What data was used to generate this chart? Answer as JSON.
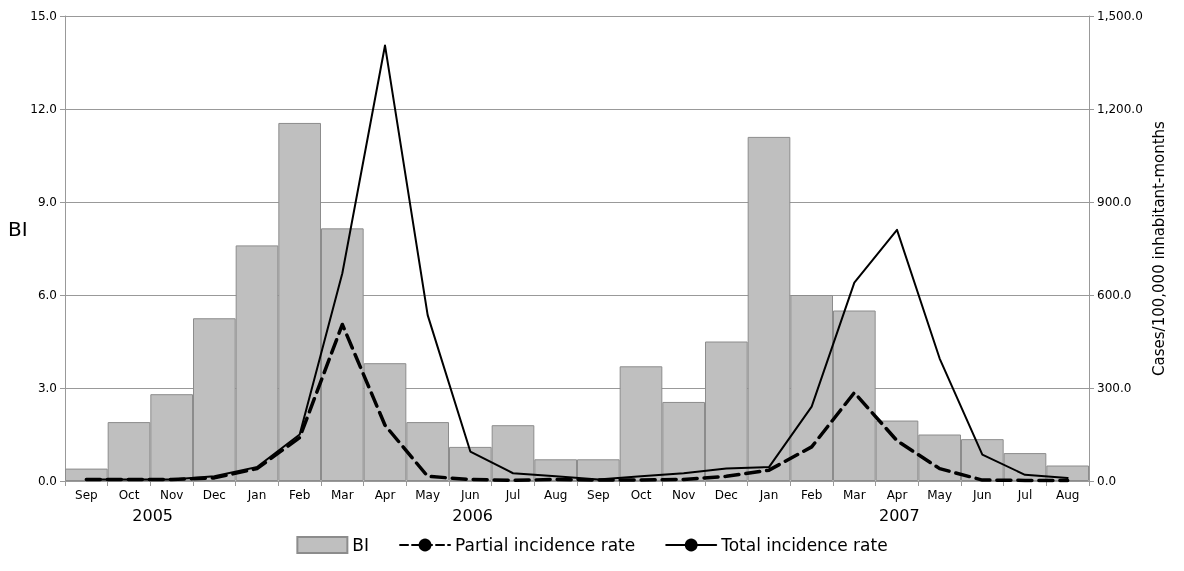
{
  "chart_data": {
    "type": "bar",
    "ylabel": "BI",
    "y2label": "Cases/100,000 inhabitant-months",
    "categories": [
      "Sep",
      "Oct",
      "Nov",
      "Dec",
      "Jan",
      "Feb",
      "Mar",
      "Apr",
      "May",
      "Jun",
      "Jul",
      "Aug",
      "Sep",
      "Oct",
      "Nov",
      "Dec",
      "Jan",
      "Feb",
      "Mar",
      "Apr",
      "May",
      "Jun",
      "Jul",
      "Aug"
    ],
    "series": [
      {
        "name": "BI",
        "color": "#bfbfbf",
        "values": [
          0.4,
          1.9,
          2.8,
          5.25,
          7.6,
          11.55,
          8.15,
          3.8,
          1.9,
          1.1,
          1.8,
          0.7,
          0.7,
          3.7,
          2.55,
          4.5,
          11.1,
          6.0,
          5.5,
          1.95,
          1.5,
          1.35,
          0.9,
          0.5
        ]
      },
      {
        "name": "Partial incidence rate",
        "type": "line",
        "axis": "y2",
        "line_style": "dashed",
        "color": "#000000",
        "values": [
          5,
          5,
          5,
          10,
          40,
          140,
          505,
          180,
          15,
          5,
          2,
          5,
          3,
          3,
          5,
          15,
          35,
          110,
          285,
          130,
          40,
          3,
          2,
          2
        ]
      },
      {
        "name": "Total incidence rate",
        "type": "line",
        "axis": "y2",
        "line_style": "solid",
        "color": "#000000",
        "values": [
          5,
          5,
          5,
          15,
          45,
          150,
          670,
          1405,
          535,
          95,
          25,
          15,
          5,
          15,
          25,
          40,
          45,
          240,
          640,
          810,
          395,
          85,
          20,
          10
        ]
      }
    ],
    "ylim": [
      0,
      15
    ],
    "yticks": [
      {
        "value": 0,
        "label": "0.0"
      },
      {
        "value": 3,
        "label": "3.0"
      },
      {
        "value": 6,
        "label": "6.0"
      },
      {
        "value": 9,
        "label": "9.0"
      },
      {
        "value": 12,
        "label": "12.0"
      },
      {
        "value": 15,
        "label": "15.0"
      }
    ],
    "y2lim": [
      0,
      1500
    ],
    "y2ticks": [
      {
        "value": 0,
        "label": "0.0"
      },
      {
        "value": 300,
        "label": "300.0"
      },
      {
        "value": 600,
        "label": "600.0"
      },
      {
        "value": 900,
        "label": "900.0"
      },
      {
        "value": 1200,
        "label": "1,200.0"
      },
      {
        "value": 1500,
        "label": "1,500.0"
      }
    ],
    "annotations": [
      "2005",
      "2006",
      "2007"
    ],
    "grid": "y",
    "legend": "bottom",
    "marker": "none"
  }
}
